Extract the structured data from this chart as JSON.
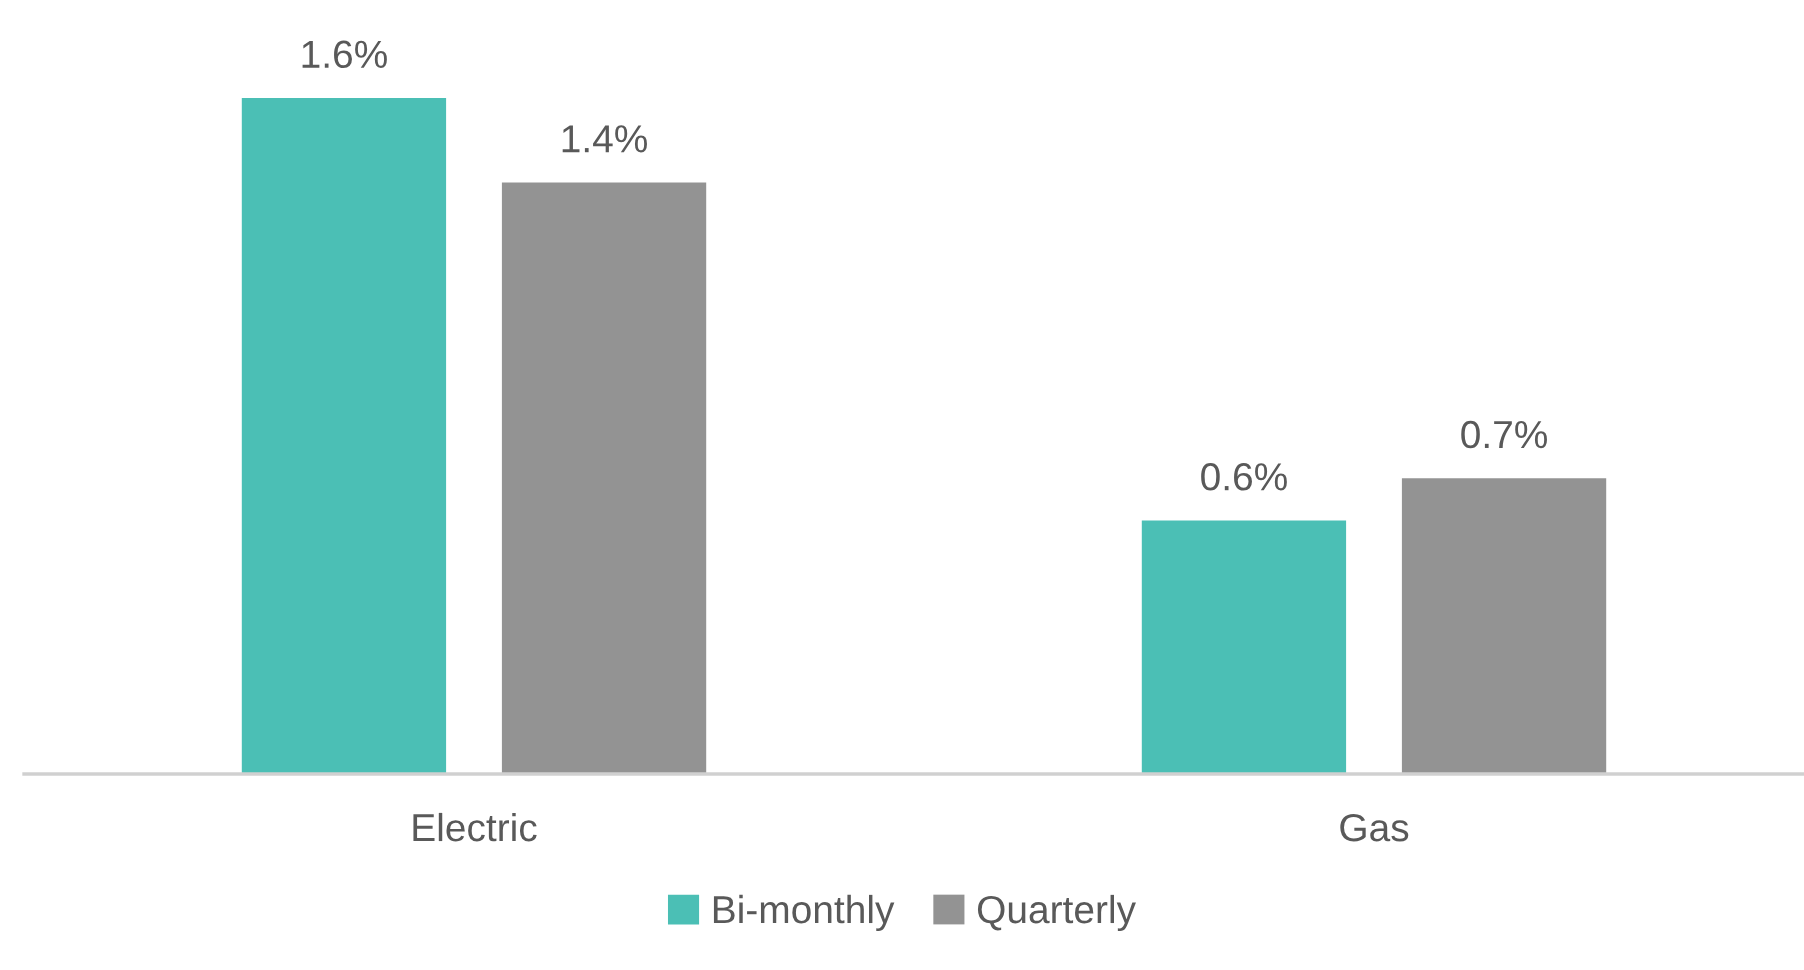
{
  "chart_data": {
    "type": "bar",
    "categories": [
      "Electric",
      "Gas"
    ],
    "series": [
      {
        "name": "Bi-monthly",
        "color": "#4bbfb5",
        "values": [
          1.6,
          0.6
        ],
        "value_labels": [
          "1.6%",
          "0.6%"
        ]
      },
      {
        "name": "Quarterly",
        "color": "#939393",
        "values": [
          1.4,
          0.7
        ],
        "value_labels": [
          "1.4%",
          "0.7%"
        ]
      }
    ],
    "legend": "bottom",
    "tick_labels": "x"
  }
}
